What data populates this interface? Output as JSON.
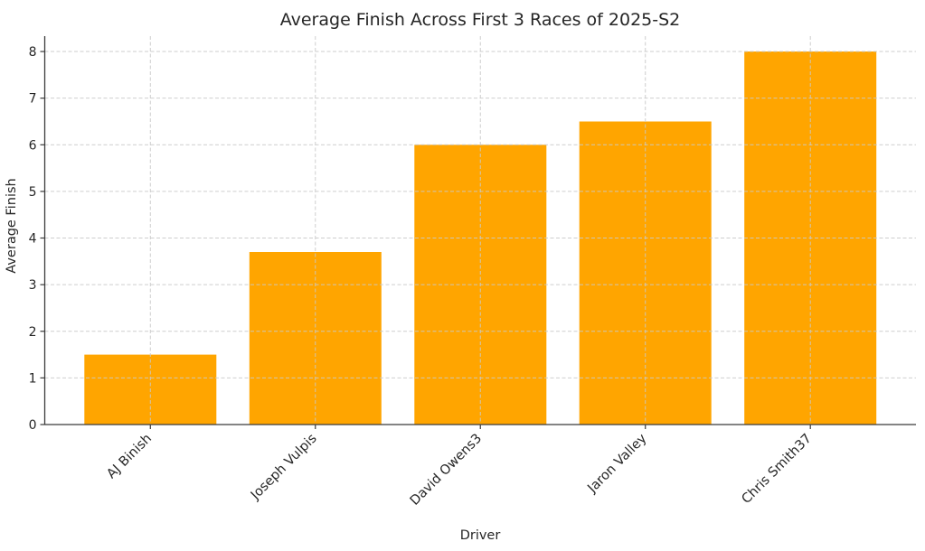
{
  "chart_data": {
    "type": "bar",
    "title": "Average Finish Across First 3 Races of 2025-S2",
    "xlabel": "Driver",
    "ylabel": "Average Finish",
    "categories": [
      "AJ Binish",
      "Joseph Vulpis",
      "David Owens3",
      "Jaron Valley",
      "Chris Smith37"
    ],
    "values": [
      1.5,
      3.7,
      6.0,
      6.5,
      8.0
    ],
    "ylim": [
      0,
      8.33
    ],
    "yticks": [
      0,
      1,
      2,
      3,
      4,
      5,
      6,
      7,
      8
    ],
    "x_tick_rotation_deg": 45,
    "grid": "dashed-horizontal-and-vertical",
    "grid_above_bars": true,
    "legend": "none",
    "colors": {
      "bar": "#FFA500",
      "grid": "#c9c9c9",
      "axis": "#3a3a3a",
      "text": "#262626",
      "background": "#ffffff"
    }
  }
}
